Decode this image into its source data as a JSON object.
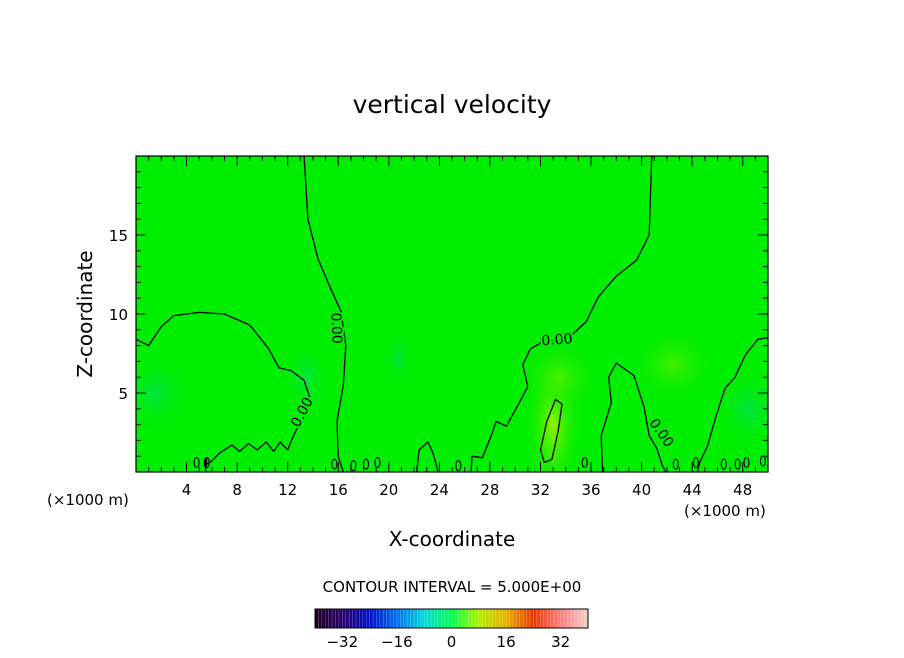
{
  "chart_data": {
    "type": "heatmap",
    "title": "vertical velocity",
    "xlabel": "X-coordinate",
    "ylabel": "Z-coordinate",
    "x_unit_left": "(×1000 m)",
    "x_unit_right": "(×1000 m)",
    "xlim": [
      0,
      50
    ],
    "ylim": [
      0,
      20
    ],
    "x_ticks": [
      4,
      8,
      12,
      16,
      20,
      24,
      28,
      32,
      36,
      40,
      44,
      48
    ],
    "y_ticks": [
      5,
      10,
      15
    ],
    "background_color": "#00ee00",
    "contour_label": "0.00",
    "zero_contours": [
      [
        [
          0,
          8.4
        ],
        [
          1,
          8.0
        ],
        [
          2,
          9.2
        ],
        [
          3,
          9.9
        ],
        [
          5,
          10.1
        ],
        [
          7,
          10.0
        ],
        [
          9,
          9.3
        ],
        [
          10.5,
          7.8
        ],
        [
          11.3,
          6.6
        ],
        [
          12.3,
          6.4
        ],
        [
          13.3,
          5.8
        ],
        [
          13.8,
          4.6
        ],
        [
          13.1,
          3.4
        ],
        [
          12.3,
          2.0
        ],
        [
          12.0,
          1.4
        ],
        [
          11.4,
          1.9
        ],
        [
          10.9,
          1.3
        ],
        [
          10.3,
          1.9
        ],
        [
          9.6,
          1.4
        ],
        [
          8.9,
          1.8
        ],
        [
          8.2,
          1.3
        ],
        [
          7.6,
          1.7
        ],
        [
          6.6,
          1.2
        ],
        [
          6.0,
          0.7
        ],
        [
          5.4,
          0.4
        ],
        [
          5.6,
          0.9
        ],
        [
          5.5,
          0
        ]
      ],
      [
        [
          13.3,
          20
        ],
        [
          13.6,
          16
        ],
        [
          14.4,
          13.5
        ],
        [
          15.4,
          11.6
        ],
        [
          16.2,
          10.2
        ],
        [
          16.6,
          8.0
        ],
        [
          16.4,
          5.5
        ],
        [
          15.9,
          3.2
        ],
        [
          16.0,
          1.0
        ],
        [
          16.4,
          0
        ]
      ],
      [
        [
          40.8,
          20
        ],
        [
          40.6,
          15
        ],
        [
          39.6,
          13.4
        ],
        [
          38.0,
          12.4
        ],
        [
          36.6,
          11.1
        ],
        [
          35.6,
          9.5
        ],
        [
          34.1,
          8.4
        ],
        [
          32.1,
          8.2
        ],
        [
          31.2,
          7.8
        ],
        [
          30.6,
          6.8
        ],
        [
          31.0,
          5.4
        ],
        [
          30.2,
          4.2
        ],
        [
          29.3,
          2.9
        ],
        [
          28.5,
          3.2
        ],
        [
          28.1,
          2.3
        ],
        [
          27.4,
          0.9
        ],
        [
          26.6,
          1.0
        ],
        [
          26.5,
          0
        ]
      ],
      [
        [
          50,
          8.5
        ],
        [
          49.2,
          8.4
        ],
        [
          48.2,
          7.4
        ],
        [
          47.4,
          6.0
        ],
        [
          46.6,
          5.3
        ],
        [
          45.8,
          3.3
        ],
        [
          45.2,
          1.6
        ],
        [
          44.6,
          0.6
        ],
        [
          44.4,
          0
        ]
      ],
      [
        [
          22.2,
          0
        ],
        [
          22.4,
          1.4
        ],
        [
          23.1,
          1.9
        ],
        [
          23.5,
          1.2
        ],
        [
          23.9,
          0
        ]
      ],
      [
        [
          36.9,
          0
        ],
        [
          36.8,
          2.3
        ],
        [
          37.6,
          4.4
        ],
        [
          37.4,
          6.0
        ],
        [
          38.0,
          6.9
        ],
        [
          39.4,
          6.1
        ],
        [
          40.2,
          4.1
        ],
        [
          40.6,
          2.3
        ],
        [
          41.2,
          1.5
        ],
        [
          41.6,
          0.5
        ],
        [
          41.9,
          0
        ]
      ],
      [
        [
          32.3,
          0.6
        ],
        [
          32.0,
          1.4
        ],
        [
          32.5,
          3.2
        ],
        [
          33.2,
          4.6
        ],
        [
          33.7,
          4.3
        ],
        [
          33.4,
          2.6
        ],
        [
          32.9,
          0.8
        ],
        [
          32.3,
          0.6
        ]
      ]
    ],
    "contour_labels": [
      {
        "x": 13.1,
        "y": 3.8,
        "angle": -62
      },
      {
        "x": 15.9,
        "y": 9.1,
        "angle": 88
      },
      {
        "x": 33.3,
        "y": 8.4,
        "angle": -4
      },
      {
        "x": 41.6,
        "y": 2.5,
        "angle": 55
      }
    ],
    "contour_interval_text": "CONTOUR INTERVAL = 5.000E+00",
    "colorbar": {
      "min": -40,
      "max": 40,
      "ticks": [
        -32,
        -16,
        0,
        16,
        32
      ],
      "stops": [
        "#200020",
        "#28006a",
        "#0010c8",
        "#0070f0",
        "#00d8d8",
        "#00ff50",
        "#b0f000",
        "#e8b000",
        "#e83800",
        "#ff8080",
        "#f0d0c8"
      ]
    }
  }
}
